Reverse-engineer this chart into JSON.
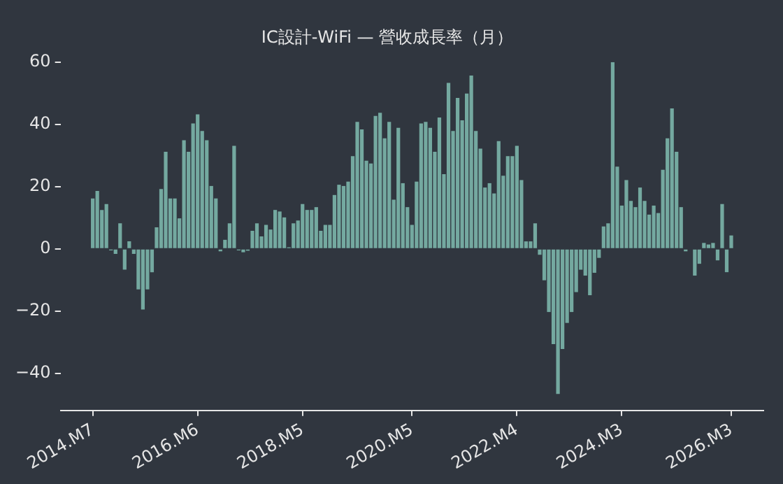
{
  "chart_data": {
    "type": "bar",
    "title": "IC設計-WiFi — 營收成長率（月）",
    "categories": [
      "2014.M7",
      null,
      null,
      null,
      null,
      null,
      null,
      null,
      null,
      null,
      null,
      null,
      null,
      null,
      null,
      null,
      null,
      null,
      null,
      null,
      null,
      null,
      null,
      "2016.M6",
      null,
      null,
      null,
      null,
      null,
      null,
      null,
      null,
      null,
      null,
      null,
      null,
      null,
      null,
      null,
      null,
      null,
      null,
      null,
      null,
      null,
      null,
      "2018.M5",
      null,
      null,
      null,
      null,
      null,
      null,
      null,
      null,
      null,
      null,
      null,
      null,
      null,
      null,
      null,
      null,
      null,
      null,
      null,
      null,
      null,
      null,
      null,
      "2020.M5",
      null,
      null,
      null,
      null,
      null,
      null,
      null,
      null,
      null,
      null,
      null,
      null,
      null,
      null,
      null,
      null,
      null,
      null,
      null,
      null,
      null,
      null,
      "2022.M4",
      null,
      null,
      null,
      null,
      null,
      null,
      null,
      null,
      null,
      null,
      null,
      null,
      null,
      null,
      null,
      null,
      null,
      null,
      null,
      null,
      null,
      null,
      "2024.M3",
      null,
      null,
      null,
      null,
      null,
      null,
      null,
      null,
      null,
      null,
      null,
      null,
      null,
      null,
      null,
      null,
      null,
      null,
      null,
      null,
      null,
      null,
      null,
      "2026.M3"
    ],
    "values": [
      16.2,
      18.6,
      12.5,
      14.4,
      -0.5,
      -1.6,
      8.2,
      -6.7,
      2.4,
      -1.6,
      -13,
      -19.5,
      -13,
      -7.5,
      6.9,
      19.2,
      31.2,
      16.2,
      16.2,
      9.8,
      34.9,
      31.2,
      40.3,
      43.2,
      37.9,
      34.9,
      20.2,
      16.2,
      -0.8,
      2.9,
      8.2,
      33.1,
      -0.5,
      -1.1,
      -0.6,
      5.8,
      8.2,
      4.0,
      7.7,
      6.2,
      12.5,
      12.0,
      10.1,
      0.5,
      8.2,
      9.1,
      14.4,
      12.5,
      12.5,
      13.4,
      5.8,
      7.7,
      7.7,
      17.3,
      20.6,
      20.2,
      21.6,
      29.8,
      40.8,
      38.4,
      28.3,
      27.4,
      42.7,
      43.7,
      35.5,
      40.8,
      15.8,
      38.9,
      21.1,
      13.4,
      7.7,
      21.6,
      40.3,
      40.8,
      38.9,
      31.2,
      42.2,
      24,
      53.3,
      37.9,
      48.5,
      41.3,
      49.9,
      55.7,
      37.9,
      32.2,
      19.7,
      21.1,
      17.8,
      34.6,
      23.5,
      29.8,
      29.8,
      33.1,
      22.1,
      2.4,
      2.4,
      8.2,
      -1.9,
      -10.1,
      -20.3,
      -30.6,
      -46.6,
      -32.2,
      -23.8,
      -20.3,
      -13.9,
      -6.7,
      -8.6,
      -14.9,
      -7.7,
      -2.9,
      7.2,
      8.2,
      60,
      26.4,
      13.9,
      22.1,
      15.4,
      13.4,
      19.7,
      15.4,
      11.0,
      13.9,
      11.5,
      25.4,
      35.5,
      45.1,
      31.2,
      13.4,
      -0.8,
      null,
      -8.6,
      -4.8,
      1.9,
      1.4,
      1.9,
      -3.7,
      14.4,
      -7.5,
      4.3
    ],
    "color": "#74a9a0",
    "ylim": [
      -51.9,
      60
    ],
    "yticks": [
      {
        "value": -40,
        "label": "−40"
      },
      {
        "value": -20,
        "label": "−20"
      },
      0,
      20,
      40,
      60
    ],
    "grid": false,
    "legend": false
  }
}
